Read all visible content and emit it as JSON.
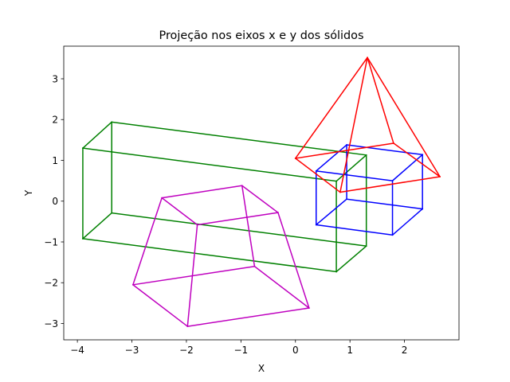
{
  "chart_data": {
    "type": "line",
    "title": "Projeção nos eixos x e y dos sólidos",
    "xlabel": "X",
    "ylabel": "Y",
    "xlim": [
      -4.25,
      3.0
    ],
    "ylim": [
      -3.4,
      3.8
    ],
    "xticks": [
      -4,
      -3,
      -2,
      -1,
      0,
      1,
      2
    ],
    "yticks": [
      -3,
      -2,
      -1,
      0,
      1,
      2,
      3
    ],
    "xtick_labels": [
      "−4",
      "−3",
      "−2",
      "−1",
      "0",
      "1",
      "2"
    ],
    "ytick_labels": [
      "−3",
      "−2",
      "−1",
      "0",
      "1",
      "2",
      "3"
    ],
    "grid": false,
    "legend": "none",
    "series": [
      {
        "color": "#008000",
        "segments": [
          [
            [
              -3.9,
              1.3
            ],
            [
              -3.37,
              1.94
            ]
          ],
          [
            [
              -3.37,
              1.94
            ],
            [
              1.3,
              1.13
            ]
          ],
          [
            [
              1.3,
              1.13
            ],
            [
              0.75,
              0.49
            ]
          ],
          [
            [
              0.75,
              0.49
            ],
            [
              -3.9,
              1.3
            ]
          ],
          [
            [
              -3.9,
              -0.92
            ],
            [
              -3.37,
              -0.29
            ]
          ],
          [
            [
              -3.37,
              -0.29
            ],
            [
              1.3,
              -1.1
            ]
          ],
          [
            [
              1.3,
              -1.1
            ],
            [
              0.75,
              -1.73
            ]
          ],
          [
            [
              0.75,
              -1.73
            ],
            [
              -3.9,
              -0.92
            ]
          ],
          [
            [
              -3.9,
              1.3
            ],
            [
              -3.9,
              -0.92
            ]
          ],
          [
            [
              -3.37,
              1.94
            ],
            [
              -3.37,
              -0.29
            ]
          ],
          [
            [
              1.3,
              1.13
            ],
            [
              1.3,
              -1.1
            ]
          ],
          [
            [
              0.75,
              0.49
            ],
            [
              0.75,
              -1.73
            ]
          ]
        ]
      },
      {
        "color": "#0000ff",
        "segments": [
          [
            [
              0.38,
              0.74
            ],
            [
              0.94,
              1.38
            ]
          ],
          [
            [
              0.94,
              1.38
            ],
            [
              2.33,
              1.14
            ]
          ],
          [
            [
              2.33,
              1.14
            ],
            [
              1.78,
              0.5
            ]
          ],
          [
            [
              1.78,
              0.5
            ],
            [
              0.38,
              0.74
            ]
          ],
          [
            [
              0.38,
              -0.58
            ],
            [
              0.94,
              0.05
            ]
          ],
          [
            [
              0.94,
              0.05
            ],
            [
              2.33,
              -0.19
            ]
          ],
          [
            [
              2.33,
              -0.19
            ],
            [
              1.78,
              -0.83
            ]
          ],
          [
            [
              1.78,
              -0.83
            ],
            [
              0.38,
              -0.58
            ]
          ],
          [
            [
              0.38,
              0.74
            ],
            [
              0.38,
              -0.58
            ]
          ],
          [
            [
              0.94,
              1.38
            ],
            [
              0.94,
              0.05
            ]
          ],
          [
            [
              2.33,
              1.14
            ],
            [
              2.33,
              -0.19
            ]
          ],
          [
            [
              1.78,
              0.5
            ],
            [
              1.78,
              -0.83
            ]
          ]
        ]
      },
      {
        "color": "#ff0000",
        "segments": [
          [
            [
              0.0,
              1.05
            ],
            [
              0.82,
              0.22
            ]
          ],
          [
            [
              0.82,
              0.22
            ],
            [
              2.65,
              0.6
            ]
          ],
          [
            [
              2.65,
              0.6
            ],
            [
              1.8,
              1.42
            ]
          ],
          [
            [
              1.8,
              1.42
            ],
            [
              0.0,
              1.05
            ]
          ],
          [
            [
              1.32,
              3.52
            ],
            [
              0.0,
              1.05
            ]
          ],
          [
            [
              1.32,
              3.52
            ],
            [
              0.82,
              0.22
            ]
          ],
          [
            [
              1.32,
              3.52
            ],
            [
              2.65,
              0.6
            ]
          ],
          [
            [
              1.32,
              3.52
            ],
            [
              1.8,
              1.42
            ]
          ]
        ]
      },
      {
        "color": "#bf00bf",
        "segments": [
          [
            [
              -2.45,
              0.08
            ],
            [
              -0.98,
              0.38
            ]
          ],
          [
            [
              -0.98,
              0.38
            ],
            [
              -0.32,
              -0.28
            ]
          ],
          [
            [
              -0.32,
              -0.28
            ],
            [
              -1.8,
              -0.58
            ]
          ],
          [
            [
              -1.8,
              -0.58
            ],
            [
              -2.45,
              0.08
            ]
          ],
          [
            [
              -2.98,
              -2.05
            ],
            [
              -0.75,
              -1.6
            ]
          ],
          [
            [
              -0.75,
              -1.6
            ],
            [
              0.25,
              -2.62
            ]
          ],
          [
            [
              0.25,
              -2.62
            ],
            [
              -1.98,
              -3.07
            ]
          ],
          [
            [
              -1.98,
              -3.07
            ],
            [
              -2.98,
              -2.05
            ]
          ],
          [
            [
              -2.45,
              0.08
            ],
            [
              -2.98,
              -2.05
            ]
          ],
          [
            [
              -0.98,
              0.38
            ],
            [
              -0.75,
              -1.6
            ]
          ],
          [
            [
              -0.32,
              -0.28
            ],
            [
              0.25,
              -2.62
            ]
          ],
          [
            [
              -1.8,
              -0.58
            ],
            [
              -1.98,
              -3.07
            ]
          ]
        ]
      }
    ]
  }
}
